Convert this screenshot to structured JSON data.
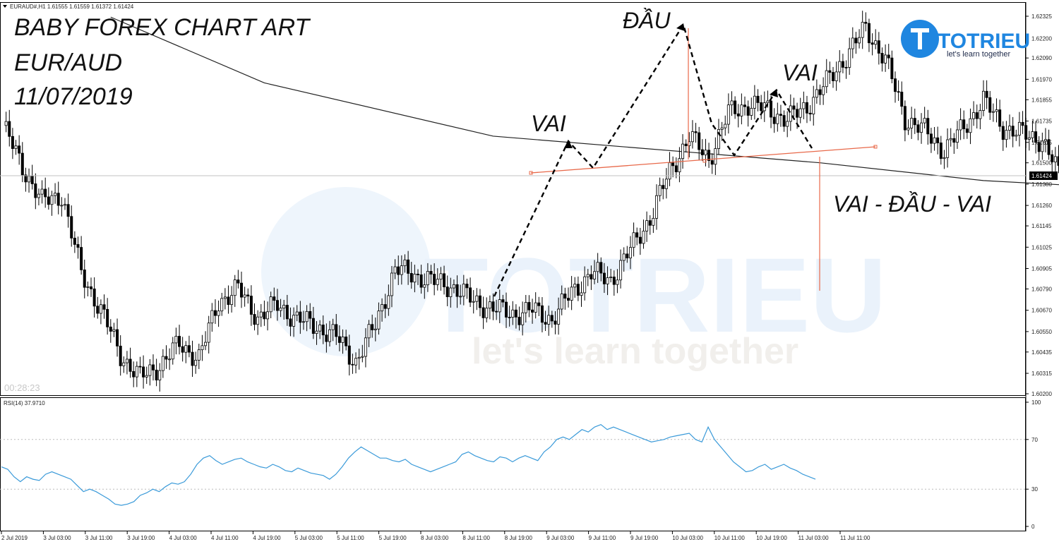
{
  "header": {
    "symbol_info": "EURAUD#,H1  1.61555 1.61559 1.61372 1.61424",
    "countdown": "00:28:23"
  },
  "annotations": {
    "title_lines": [
      "BABY FOREX CHART ART",
      "EUR/AUD",
      "11/07/2019"
    ],
    "head": "ĐẦU",
    "left_shoulder": "VAI",
    "right_shoulder": "VAI",
    "pattern": "VAI - ĐẦU - VAI"
  },
  "logo": {
    "main": "TOTRIEU",
    "sub": "let's learn together"
  },
  "watermark": {
    "main": "TOTRIEU",
    "sub": "let's learn together"
  },
  "colors": {
    "neckline": "#e8694a",
    "rsi": "#3a9ad9",
    "ma": "#222222",
    "brand": "#1f86e0"
  },
  "chart_data": [
    {
      "type": "candlestick",
      "symbol": "EURAUD#",
      "timeframe": "H1",
      "ylim": [
        1.602,
        1.62325
      ],
      "y_ticks": [
        "1.62325",
        "1.62200",
        "1.62090",
        "1.61970",
        "1.61855",
        "1.61735",
        "1.61615",
        "1.61500",
        "1.61380",
        "1.61260",
        "1.61145",
        "1.61025",
        "1.60905",
        "1.60790",
        "1.60670",
        "1.60550",
        "1.60435",
        "1.60315",
        "1.60200"
      ],
      "last_price": "1.61424",
      "x_ticks": [
        "2 Jul 2019",
        "3 Jul 03:00",
        "3 Jul 11:00",
        "3 Jul 19:00",
        "4 Jul 03:00",
        "4 Jul 11:00",
        "4 Jul 19:00",
        "5 Jul 03:00",
        "5 Jul 11:00",
        "5 Jul 19:00",
        "8 Jul 03:00",
        "8 Jul 11:00",
        "8 Jul 19:00",
        "9 Jul 03:00",
        "9 Jul 11:00",
        "9 Jul 19:00",
        "10 Jul 03:00",
        "10 Jul 11:00",
        "10 Jul 19:00",
        "11 Jul 03:00",
        "11 Jul 11:00"
      ],
      "close_anchors": [
        [
          0,
          1.6171
        ],
        [
          6,
          1.6148
        ],
        [
          12,
          1.6128
        ],
        [
          18,
          1.6132
        ],
        [
          24,
          1.6088
        ],
        [
          30,
          1.6067
        ],
        [
          36,
          1.6042
        ],
        [
          42,
          1.6029
        ],
        [
          48,
          1.6036
        ],
        [
          54,
          1.6048
        ],
        [
          60,
          1.604
        ],
        [
          66,
          1.6072
        ],
        [
          72,
          1.6079
        ],
        [
          78,
          1.6063
        ],
        [
          84,
          1.607
        ],
        [
          90,
          1.6062
        ],
        [
          96,
          1.6058
        ],
        [
          102,
          1.6052
        ],
        [
          108,
          1.6038
        ],
        [
          114,
          1.6059
        ],
        [
          120,
          1.609
        ],
        [
          126,
          1.6087
        ],
        [
          132,
          1.6083
        ],
        [
          138,
          1.608
        ],
        [
          144,
          1.6072
        ],
        [
          150,
          1.6068
        ],
        [
          156,
          1.6065
        ],
        [
          162,
          1.6067
        ],
        [
          168,
          1.6062
        ],
        [
          174,
          1.6077
        ],
        [
          180,
          1.6088
        ],
        [
          186,
          1.6084
        ],
        [
          192,
          1.6101
        ],
        [
          198,
          1.6119
        ],
        [
          204,
          1.6145
        ],
        [
          210,
          1.6165
        ],
        [
          216,
          1.6152
        ],
        [
          222,
          1.6178
        ],
        [
          228,
          1.6183
        ],
        [
          234,
          1.618
        ],
        [
          240,
          1.6174
        ],
        [
          246,
          1.6182
        ],
        [
          252,
          1.6195
        ],
        [
          258,
          1.621
        ],
        [
          264,
          1.6226
        ],
        [
          270,
          1.6208
        ],
        [
          276,
          1.6175
        ],
        [
          282,
          1.6168
        ],
        [
          288,
          1.6157
        ],
        [
          294,
          1.617
        ],
        [
          300,
          1.6185
        ],
        [
          306,
          1.617
        ],
        [
          312,
          1.6166
        ],
        [
          318,
          1.6163
        ],
        [
          324,
          1.614
        ]
      ],
      "moving_average": [
        [
          33,
          1.6232
        ],
        [
          80,
          1.6195
        ],
        [
          150,
          1.6165
        ],
        [
          250,
          1.615
        ],
        [
          300,
          1.614
        ],
        [
          330,
          1.6137
        ],
        [
          360,
          1.6143
        ],
        [
          390,
          1.6148
        ],
        [
          460,
          1.6152
        ],
        [
          500,
          1.6153
        ],
        [
          530,
          1.6152
        ]
      ]
    },
    {
      "type": "line",
      "name": "RSI(14) 37.9710",
      "ylim": [
        0,
        100
      ],
      "y_ticks": [
        "100",
        "70",
        "30",
        "0"
      ],
      "levels": [
        70,
        30
      ],
      "x_ticks": [
        "2 Jul 2019",
        "3 Jul 03:00",
        "3 Jul 11:00",
        "3 Jul 19:00",
        "4 Jul 03:00",
        "4 Jul 11:00",
        "4 Jul 19:00",
        "5 Jul 03:00",
        "5 Jul 11:00",
        "5 Jul 19:00",
        "8 Jul 03:00",
        "8 Jul 11:00",
        "8 Jul 19:00",
        "9 Jul 03:00",
        "9 Jul 11:00",
        "9 Jul 19:00",
        "10 Jul 03:00",
        "10 Jul 11:00",
        "10 Jul 19:00",
        "11 Jul 03:00",
        "11 Jul 11:00"
      ],
      "values": [
        48,
        46,
        40,
        36,
        40,
        38,
        37,
        42,
        44,
        42,
        40,
        38,
        33,
        28,
        30,
        28,
        25,
        22,
        18,
        17,
        18,
        20,
        25,
        27,
        30,
        28,
        32,
        35,
        34,
        36,
        42,
        50,
        55,
        57,
        53,
        50,
        52,
        54,
        55,
        52,
        50,
        48,
        47,
        50,
        48,
        45,
        44,
        47,
        45,
        43,
        42,
        41,
        38,
        42,
        48,
        55,
        60,
        64,
        61,
        58,
        55,
        55,
        53,
        52,
        54,
        50,
        48,
        46,
        44,
        46,
        48,
        50,
        52,
        58,
        60,
        57,
        55,
        53,
        52,
        56,
        55,
        52,
        55,
        57,
        55,
        53,
        60,
        64,
        70,
        72,
        70,
        74,
        78,
        76,
        80,
        82,
        78,
        80,
        78,
        76,
        74,
        72,
        70,
        68,
        69,
        70,
        72,
        73,
        74,
        75,
        70,
        68,
        80,
        70,
        64,
        58,
        52,
        48,
        44,
        45,
        48,
        50,
        46,
        48,
        50,
        47,
        45,
        42,
        40,
        38
      ],
      "last_value": 37.971
    }
  ]
}
